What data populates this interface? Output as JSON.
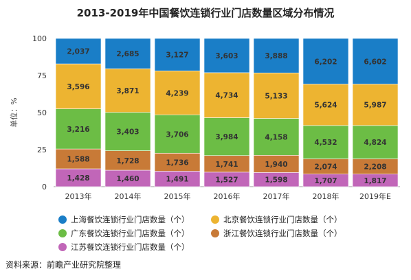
{
  "chart_data": {
    "type": "bar",
    "stacked": "percent",
    "title": "2013-2019年中国餐饮连锁行业门店数量区域分布情况",
    "ylabel": "单位：%",
    "ylim": [
      0,
      100
    ],
    "yticks": [
      0,
      25,
      50,
      75,
      100
    ],
    "categories": [
      "2013年",
      "2014年",
      "2015年",
      "2016年",
      "2017年",
      "2018年",
      "2019年E"
    ],
    "series": [
      {
        "name": "江苏餐饮连锁行业门店数量（个）",
        "color": "#c166b8",
        "values": [
          1428,
          1460,
          1491,
          1527,
          1598,
          1707,
          1817
        ]
      },
      {
        "name": "浙江餐饮连锁行业门店数量（个）",
        "color": "#c87a37",
        "values": [
          1588,
          1728,
          1736,
          1741,
          1940,
          2074,
          2208
        ]
      },
      {
        "name": "广东餐饮连锁行业门店数量（个）",
        "color": "#6cbd45",
        "values": [
          3216,
          3403,
          3706,
          3984,
          4158,
          4532,
          4824
        ]
      },
      {
        "name": "北京餐饮连锁行业门店数量（个）",
        "color": "#edb431",
        "values": [
          3596,
          3871,
          4239,
          4734,
          5133,
          5624,
          5987
        ]
      },
      {
        "name": "上海餐饮连锁行业门店数量（个）",
        "color": "#1a7ec7",
        "values": [
          2037,
          2685,
          3127,
          3603,
          3888,
          6202,
          6602
        ]
      }
    ],
    "value_labels": [
      [
        "1,428",
        "1,460",
        "1,491",
        "1,527",
        "1,598",
        "1,707",
        "1,817"
      ],
      [
        "1,588",
        "1,728",
        "1,736",
        "1,741",
        "1,940",
        "2,074",
        "2,208"
      ],
      [
        "3,216",
        "3,403",
        "3,706",
        "3,984",
        "4,158",
        "4,532",
        "4,824"
      ],
      [
        "3,596",
        "3,871",
        "4,239",
        "4,734",
        "5,133",
        "5,624",
        "5,987"
      ],
      [
        "2,037",
        "2,685",
        "3,127",
        "3,603",
        "3,888",
        "6,202",
        "6,602"
      ]
    ],
    "legend_order": [
      4,
      3,
      2,
      1,
      0
    ],
    "legend_position": "bottom",
    "grid": false
  },
  "source": "资料来源：前瞻产业研究院整理"
}
